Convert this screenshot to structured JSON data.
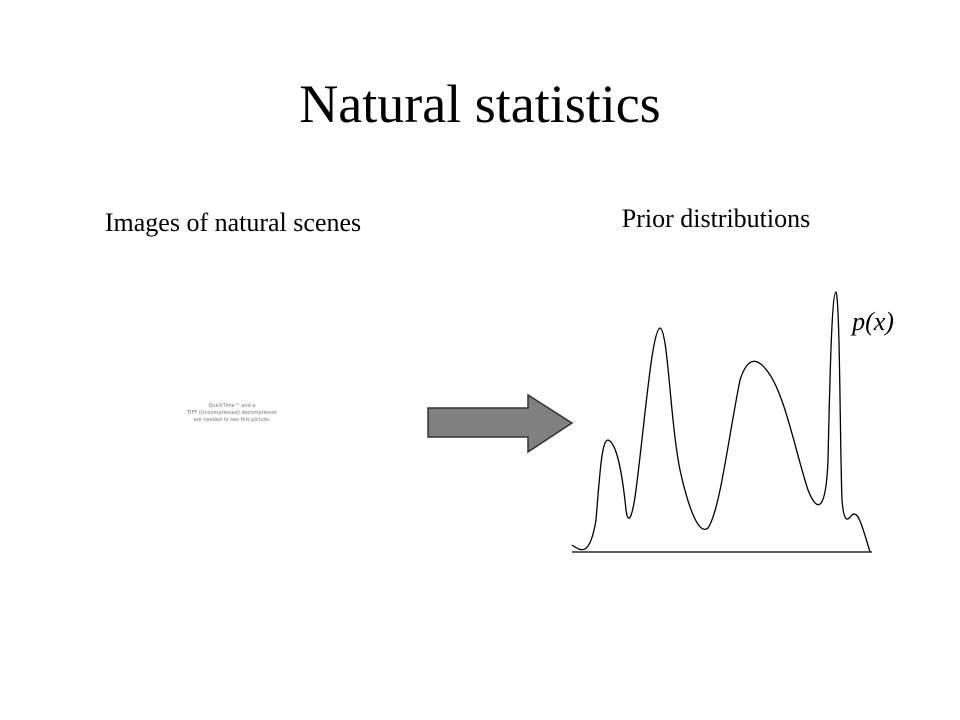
{
  "header": {
    "title": "Natural statistics"
  },
  "left": {
    "heading": "Images of natural scenes",
    "placeholder": [
      "QuickTime™ and a",
      "TIFF (Uncompressed) decompressor",
      "are needed to see this picture."
    ]
  },
  "right": {
    "heading": "Prior distributions",
    "curve_label": "p(x)"
  }
}
